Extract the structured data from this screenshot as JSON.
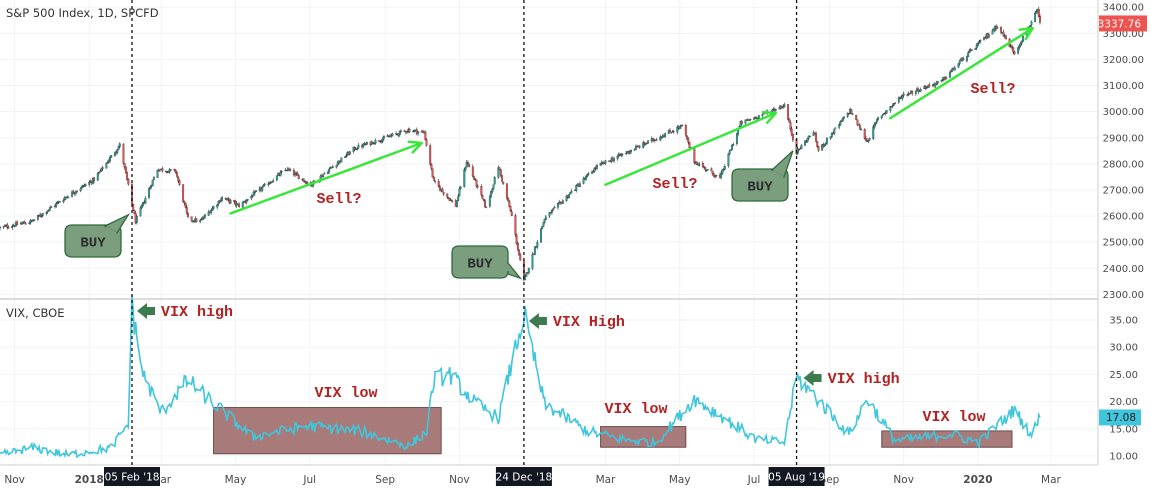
{
  "chart_data": [
    {
      "type": "candlestick",
      "title": "S&P 500 Index, 1D, SPCFD",
      "ylim": [
        2290,
        3420
      ],
      "y_ticks": [
        3400,
        3300,
        3200,
        3100,
        3000,
        2900,
        2800,
        2700,
        2600,
        2500,
        2400,
        2300
      ],
      "y_tick_labels": [
        "3400.00",
        "3300.00",
        "3200.00",
        "3100.00",
        "3000.00",
        "2900.00",
        "2800.00",
        "2700.00",
        "2600.00",
        "2500.00",
        "2400.00",
        "2300.00"
      ],
      "last_value_label": "3337.76",
      "last_value": 3337.76,
      "anchors": [
        [
          "2017-10-20",
          2555
        ],
        [
          "2017-11-15",
          2580
        ],
        [
          "2017-12-15",
          2680
        ],
        [
          "2018-01-05",
          2740
        ],
        [
          "2018-01-26",
          2872
        ],
        [
          "2018-02-08",
          2580
        ],
        [
          "2018-02-26",
          2780
        ],
        [
          "2018-03-13",
          2770
        ],
        [
          "2018-03-23",
          2590
        ],
        [
          "2018-04-02",
          2580
        ],
        [
          "2018-04-20",
          2670
        ],
        [
          "2018-05-04",
          2640
        ],
        [
          "2018-06-12",
          2780
        ],
        [
          "2018-07-02",
          2720
        ],
        [
          "2018-08-07",
          2860
        ],
        [
          "2018-09-20",
          2930
        ],
        [
          "2018-10-03",
          2920
        ],
        [
          "2018-10-11",
          2730
        ],
        [
          "2018-10-29",
          2640
        ],
        [
          "2018-11-07",
          2810
        ],
        [
          "2018-11-23",
          2630
        ],
        [
          "2018-12-03",
          2790
        ],
        [
          "2018-12-14",
          2600
        ],
        [
          "2018-12-24",
          2350
        ],
        [
          "2019-01-10",
          2590
        ],
        [
          "2019-02-22",
          2790
        ],
        [
          "2019-03-21",
          2850
        ],
        [
          "2019-05-03",
          2945
        ],
        [
          "2019-05-13",
          2810
        ],
        [
          "2019-06-03",
          2745
        ],
        [
          "2019-06-20",
          2955
        ],
        [
          "2019-07-26",
          3025
        ],
        [
          "2019-08-05",
          2845
        ],
        [
          "2019-08-19",
          2925
        ],
        [
          "2019-08-23",
          2850
        ],
        [
          "2019-09-18",
          3005
        ],
        [
          "2019-10-02",
          2885
        ],
        [
          "2019-10-11",
          2975
        ],
        [
          "2019-11-01",
          3065
        ],
        [
          "2019-12-02",
          3115
        ],
        [
          "2019-12-17",
          3190
        ],
        [
          "2020-01-17",
          3330
        ],
        [
          "2020-01-31",
          3225
        ],
        [
          "2020-02-19",
          3386
        ],
        [
          "2020-02-21",
          3337
        ]
      ],
      "annotations": [
        {
          "text": "BUY",
          "style": "speech-bubble"
        },
        {
          "text": "BUY",
          "style": "speech-bubble"
        },
        {
          "text": "BUY",
          "style": "speech-bubble"
        },
        {
          "text": "Sell?",
          "style": "red-text"
        },
        {
          "text": "Sell?",
          "style": "red-text"
        },
        {
          "text": "Sell?",
          "style": "red-text"
        }
      ],
      "trend_arrows": [
        {
          "from": [
            "2018-04-27",
            2610
          ],
          "to": [
            "2018-10-01",
            2880
          ]
        },
        {
          "from": [
            "2019-03-01",
            2720
          ],
          "to": [
            "2019-07-19",
            2995
          ]
        },
        {
          "from": [
            "2019-10-21",
            2975
          ],
          "to": [
            "2020-02-15",
            3320
          ]
        }
      ]
    },
    {
      "type": "line",
      "title": "VIX, CBOE",
      "ylim": [
        8.7,
        38.5
      ],
      "y_ticks": [
        35,
        30,
        25,
        20,
        15,
        10
      ],
      "y_tick_labels": [
        "35.00",
        "30.00",
        "25.00",
        "20.00",
        "15.00",
        "10.00"
      ],
      "last_value_label": "17.08",
      "last_value": 17.08,
      "anchors": [
        [
          "2017-10-20",
          10.2
        ],
        [
          "2017-11-15",
          11.5
        ],
        [
          "2017-12-15",
          10.2
        ],
        [
          "2018-01-19",
          11.5
        ],
        [
          "2018-02-02",
          16.0
        ],
        [
          "2018-02-05",
          37.3
        ],
        [
          "2018-02-14",
          25.0
        ],
        [
          "2018-03-01",
          18.0
        ],
        [
          "2018-03-23",
          24.0
        ],
        [
          "2018-04-06",
          21.0
        ],
        [
          "2018-05-15",
          13.5
        ],
        [
          "2018-06-28",
          15.5
        ],
        [
          "2018-08-13",
          14.5
        ],
        [
          "2018-09-20",
          11.8
        ],
        [
          "2018-10-05",
          14.5
        ],
        [
          "2018-10-11",
          24.0
        ],
        [
          "2018-10-24",
          25.0
        ],
        [
          "2018-11-15",
          19.5
        ],
        [
          "2018-12-03",
          17.0
        ],
        [
          "2018-12-24",
          36.1
        ],
        [
          "2019-01-10",
          19.5
        ],
        [
          "2019-02-15",
          14.5
        ],
        [
          "2019-03-15",
          13.0
        ],
        [
          "2019-04-12",
          12.5
        ],
        [
          "2019-05-13",
          20.5
        ],
        [
          "2019-06-03",
          17.5
        ],
        [
          "2019-07-03",
          13.0
        ],
        [
          "2019-07-26",
          12.5
        ],
        [
          "2019-08-05",
          24.5
        ],
        [
          "2019-08-20",
          21.0
        ],
        [
          "2019-09-17",
          14.0
        ],
        [
          "2019-10-02",
          20.5
        ],
        [
          "2019-10-25",
          12.8
        ],
        [
          "2019-12-10",
          14.0
        ],
        [
          "2020-01-02",
          12.5
        ],
        [
          "2020-01-31",
          18.5
        ],
        [
          "2020-02-14",
          13.8
        ],
        [
          "2020-02-21",
          17.08
        ]
      ],
      "annotations": [
        {
          "text": "VIX high",
          "style": "arrow-label"
        },
        {
          "text": "VIX High",
          "style": "arrow-label"
        },
        {
          "text": "VIX high",
          "style": "arrow-label"
        },
        {
          "text": "VIX low",
          "style": "red-text"
        },
        {
          "text": "VIX low",
          "style": "red-text"
        },
        {
          "text": "VIX low",
          "style": "red-text"
        }
      ],
      "low_boxes": [
        {
          "x": [
            "2018-04-13",
            "2018-10-17"
          ],
          "y": [
            10.4,
            18.9
          ]
        },
        {
          "x": [
            "2019-02-25",
            "2019-05-06"
          ],
          "y": [
            11.6,
            15.4
          ]
        },
        {
          "x": [
            "2019-10-14",
            "2020-01-29"
          ],
          "y": [
            11.6,
            14.6
          ]
        }
      ]
    }
  ],
  "x_axis": {
    "labels": [
      "Nov",
      "2018",
      "Mar",
      "May",
      "Jul",
      "Sep",
      "Nov",
      "Mar",
      "May",
      "Jul",
      "Sep",
      "Nov",
      "2020",
      "Mar"
    ],
    "label_dates": [
      "2017-11-01",
      "2018-01-01",
      "2018-03-01",
      "2018-05-01",
      "2018-07-01",
      "2018-09-01",
      "2018-11-01",
      "2019-03-01",
      "2019-05-01",
      "2019-07-01",
      "2019-09-01",
      "2019-11-01",
      "2020-01-01",
      "2020-03-01"
    ],
    "markers": [
      {
        "date": "2018-02-05",
        "label": "05 Feb '18"
      },
      {
        "date": "2018-12-24",
        "label": "24 Dec '18"
      },
      {
        "date": "2019-08-05",
        "label": "05 Aug '19"
      }
    ]
  },
  "colors": {
    "up_candle": "#26a69a",
    "down_candle": "#ef5350",
    "vix_line": "#3fc6dc",
    "arrow_green": "#39e639",
    "annotation_red": "#b22222",
    "buy_bubble_fill": "#7a9e7e",
    "buy_bubble_stroke": "#2e6b3a",
    "vix_arrow": "#3d7a4f",
    "low_box_fill": "#a97a7a",
    "last_price_badge": "#ef5350",
    "vix_badge": "#3fc6dc"
  }
}
